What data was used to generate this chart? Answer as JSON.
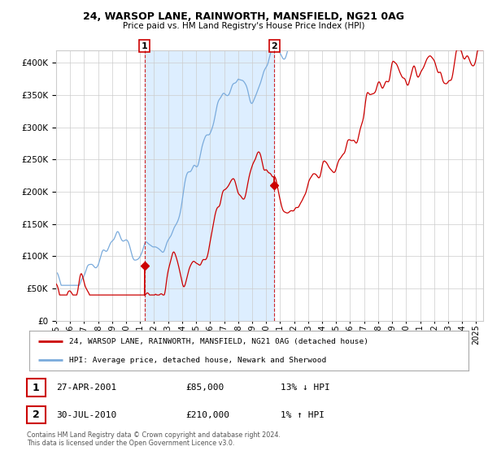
{
  "title": "24, WARSOP LANE, RAINWORTH, MANSFIELD, NG21 0AG",
  "subtitle": "Price paid vs. HM Land Registry's House Price Index (HPI)",
  "ylim": [
    0,
    420000
  ],
  "yticks": [
    0,
    50000,
    100000,
    150000,
    200000,
    250000,
    300000,
    350000,
    400000
  ],
  "x_start_year": 1995.0,
  "x_end_year": 2025.5,
  "sale1_year": 2001.32,
  "sale1_price": 85000,
  "sale1_date": "27-APR-2001",
  "sale1_pct": "13% ↓ HPI",
  "sale2_year": 2010.58,
  "sale2_price": 210000,
  "sale2_date": "30-JUL-2010",
  "sale2_pct": "1% ↑ HPI",
  "shaded_color": "#ddeeff",
  "line_color_hpi": "#7aabdc",
  "line_color_price": "#cc0000",
  "marker_color": "#cc0000",
  "dashed_line_color": "#cc0000",
  "legend_label1": "24, WARSOP LANE, RAINWORTH, MANSFIELD, NG21 0AG (detached house)",
  "legend_label2": "HPI: Average price, detached house, Newark and Sherwood",
  "footnote": "Contains HM Land Registry data © Crown copyright and database right 2024.\nThis data is licensed under the Open Government Licence v3.0.",
  "bg_color": "#ffffff",
  "grid_color": "#cccccc",
  "xtick_years": [
    1995,
    1996,
    1997,
    1998,
    1999,
    2000,
    2001,
    2002,
    2003,
    2004,
    2005,
    2006,
    2007,
    2008,
    2009,
    2010,
    2011,
    2012,
    2013,
    2014,
    2015,
    2016,
    2017,
    2018,
    2019,
    2020,
    2021,
    2022,
    2023,
    2024,
    2025
  ]
}
